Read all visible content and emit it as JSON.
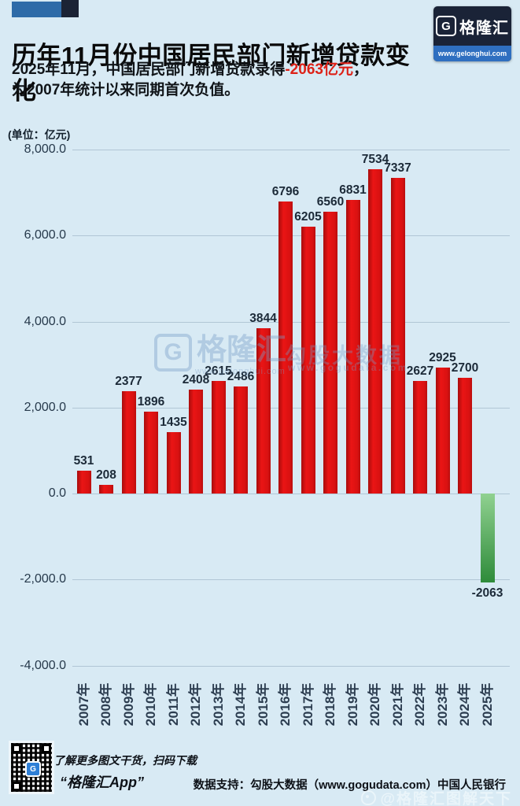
{
  "header": {
    "title": "历年11月份中国居民部门新增贷款变化",
    "logo": {
      "symbol": "G",
      "name": "格隆汇",
      "url": "www.gelonghui.com"
    }
  },
  "subtitle": {
    "line1_prefix": "2025年11月，中国居民部门新增贷款录得",
    "line1_highlight": "-2063亿元",
    "line1_suffix": "，",
    "line2": "为2007年统计以来同期首次负值。",
    "highlight_color": "#dd2218"
  },
  "chart_data": {
    "type": "bar",
    "title": "历年11月份中国居民部门新增贷款变化",
    "unit_label": "(单位：亿元)",
    "categories": [
      "2007年",
      "2008年",
      "2009年",
      "2010年",
      "2011年",
      "2012年",
      "2013年",
      "2014年",
      "2015年",
      "2016年",
      "2017年",
      "2018年",
      "2019年",
      "2020年",
      "2021年",
      "2022年",
      "2023年",
      "2024年",
      "2025年"
    ],
    "values": [
      531,
      208,
      2377,
      1896,
      1435,
      2408,
      2615,
      2486,
      3844,
      6796,
      6205,
      6560,
      6831,
      7534,
      7337,
      2627,
      2925,
      2700,
      -2063
    ],
    "bar_labels": [
      "531",
      "208",
      "2377",
      "1896",
      "1435",
      "2408",
      "2615",
      "2486",
      "3844",
      "6796",
      "6205",
      "6560",
      "6831",
      "7534",
      "7337",
      "2627",
      "2925",
      "2700",
      "-2063"
    ],
    "xlabel": "",
    "ylabel": "亿元",
    "ylim": [
      -4000,
      8000
    ],
    "grid": true,
    "legend": false,
    "yticks": [
      {
        "value": 8000,
        "label": "8,000.0"
      },
      {
        "value": 6000,
        "label": "6,000.0"
      },
      {
        "value": 4000,
        "label": "4,000.0"
      },
      {
        "value": 2000,
        "label": "2,000.0"
      },
      {
        "value": 0,
        "label": "0.0"
      },
      {
        "value": -2000,
        "label": "-2,000.0"
      },
      {
        "value": -4000,
        "label": "-4,000.0"
      }
    ],
    "bar_color_positive": "#d91111",
    "bar_color_negative_top": "#90d190",
    "bar_color_negative_bottom": "#2e8b3a"
  },
  "watermarks": {
    "brand_symbol": "G",
    "brand_name": "格隆汇",
    "brand_url": "www.gelonghui.com",
    "data_name": "勾股大数据",
    "data_url": "www.gogudata.com"
  },
  "footer": {
    "qr_caption": "了解更多图文干货，扫码下载",
    "app_name": "“格隆汇App”",
    "data_support": "数据支持：勾股大数据（www.gogudata.com）中国人民银行",
    "weibo_watermark": "@格隆汇图解天下"
  },
  "colors": {
    "background": "#d8eaf4",
    "title_text": "#0a0a0a",
    "positive_bar": "#d91111",
    "negative_bar": "#2e8b3a",
    "highlight_red": "#dd2218",
    "logo_navy": "#1a2337",
    "logo_strip_blue": "#2f6fc0"
  }
}
